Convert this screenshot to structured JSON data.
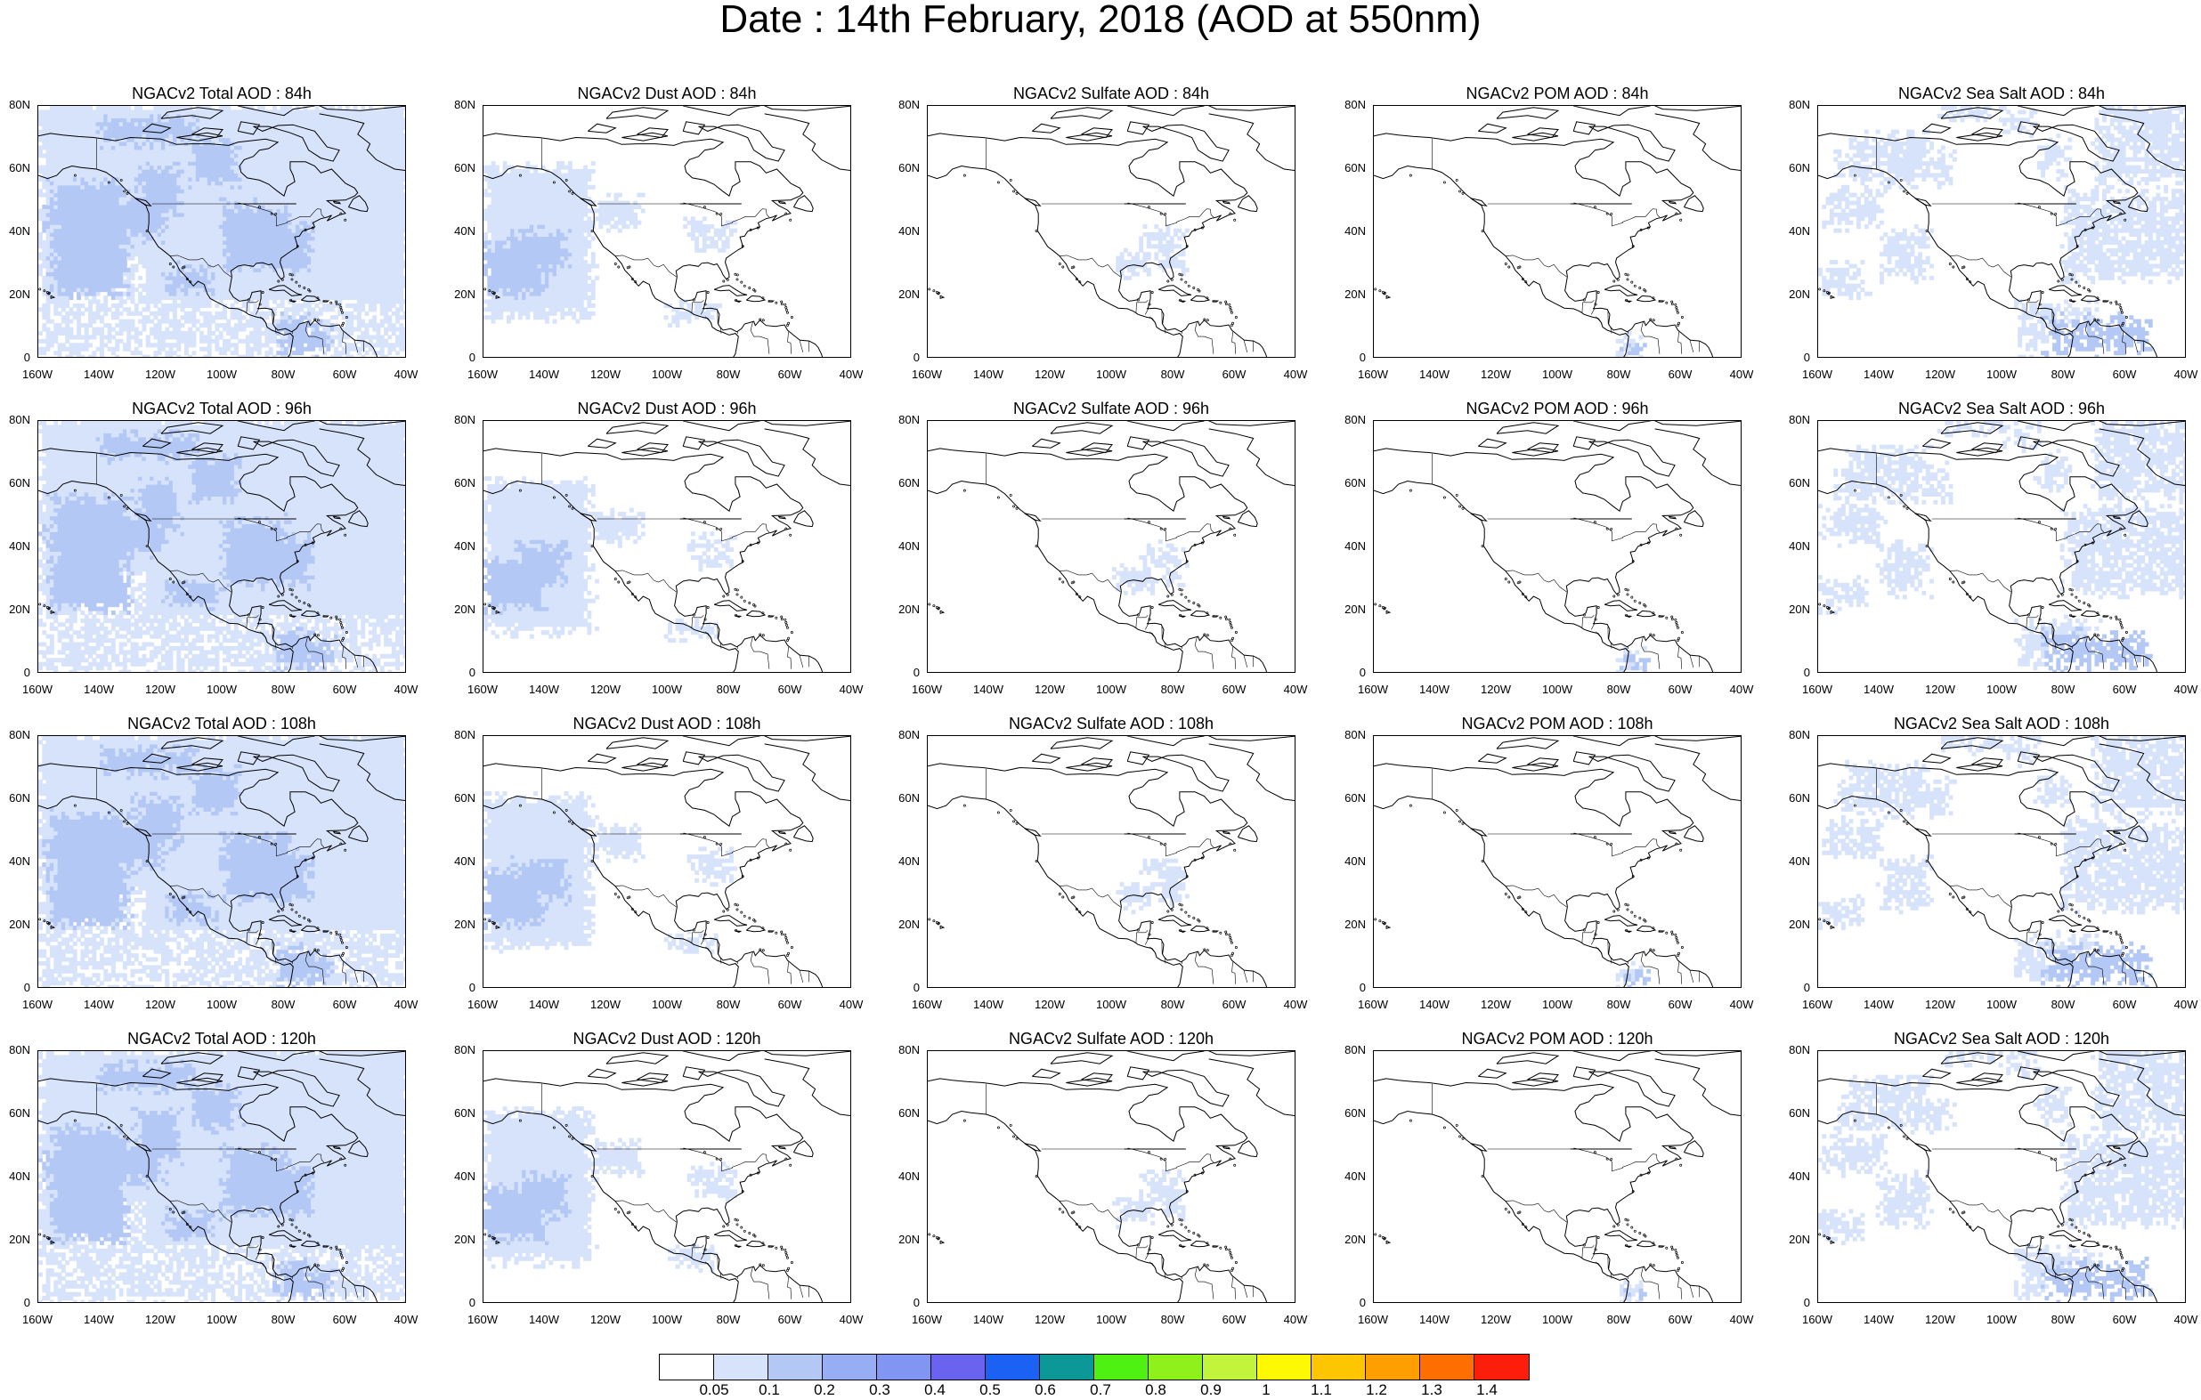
{
  "title": "Date : 14th February, 2018 (AOD at 550nm)",
  "axes": {
    "x_ticks": [
      "160W",
      "140W",
      "120W",
      "100W",
      "80W",
      "60W",
      "40W"
    ],
    "y_ticks": [
      "80N",
      "60N",
      "40N",
      "20N",
      "0"
    ],
    "lon_range": [
      -160,
      -40
    ],
    "lat_range": [
      0,
      80
    ]
  },
  "products": [
    {
      "key": "total",
      "name": "NGACv2 Total AOD"
    },
    {
      "key": "dust",
      "name": "NGACv2 Dust AOD"
    },
    {
      "key": "sulfate",
      "name": "NGACv2 Sulfate AOD"
    },
    {
      "key": "pom",
      "name": "NGACv2 POM AOD"
    },
    {
      "key": "seasalt",
      "name": "NGACv2 Sea Salt AOD"
    }
  ],
  "forecast_hours": [
    "84h",
    "96h",
    "108h",
    "120h"
  ],
  "panel_titles": [
    [
      "NGACv2 Total AOD : 84h",
      "NGACv2 Dust AOD : 84h",
      "NGACv2 Sulfate AOD : 84h",
      "NGACv2 POM AOD : 84h",
      "NGACv2 Sea Salt AOD : 84h"
    ],
    [
      "NGACv2 Total AOD : 96h",
      "NGACv2 Dust AOD : 96h",
      "NGACv2 Sulfate AOD : 96h",
      "NGACv2 POM AOD : 96h",
      "NGACv2 Sea Salt AOD : 96h"
    ],
    [
      "NGACv2 Total AOD : 108h",
      "NGACv2 Dust AOD : 108h",
      "NGACv2 Sulfate AOD : 108h",
      "NGACv2 POM AOD : 108h",
      "NGACv2 Sea Salt AOD : 108h"
    ],
    [
      "NGACv2 Total AOD : 120h",
      "NGACv2 Dust AOD : 120h",
      "NGACv2 Sulfate AOD : 120h",
      "NGACv2 POM AOD : 120h",
      "NGACv2 Sea Salt  AOD : 120h"
    ]
  ],
  "colorbar": {
    "colors": [
      "#ffffff",
      "#d7e3fb",
      "#b4c8f6",
      "#98aef4",
      "#8196f2",
      "#6a63ef",
      "#1a61f4",
      "#0c9896",
      "#4ef111",
      "#8ef11a",
      "#c2f43b",
      "#fdf902",
      "#fec602",
      "#fe9e00",
      "#fe6e00",
      "#fc1d0b"
    ],
    "labels": [
      "0.05",
      "0.1",
      "0.2",
      "0.3",
      "0.4",
      "0.5",
      "0.6",
      "0.7",
      "0.8",
      "0.9",
      "1",
      "1.1",
      "1.2",
      "1.3",
      "1.4"
    ]
  },
  "field_colors": {
    "light": "#d7e3fb",
    "mid": "#b4c8f6",
    "coast": "#000000"
  }
}
